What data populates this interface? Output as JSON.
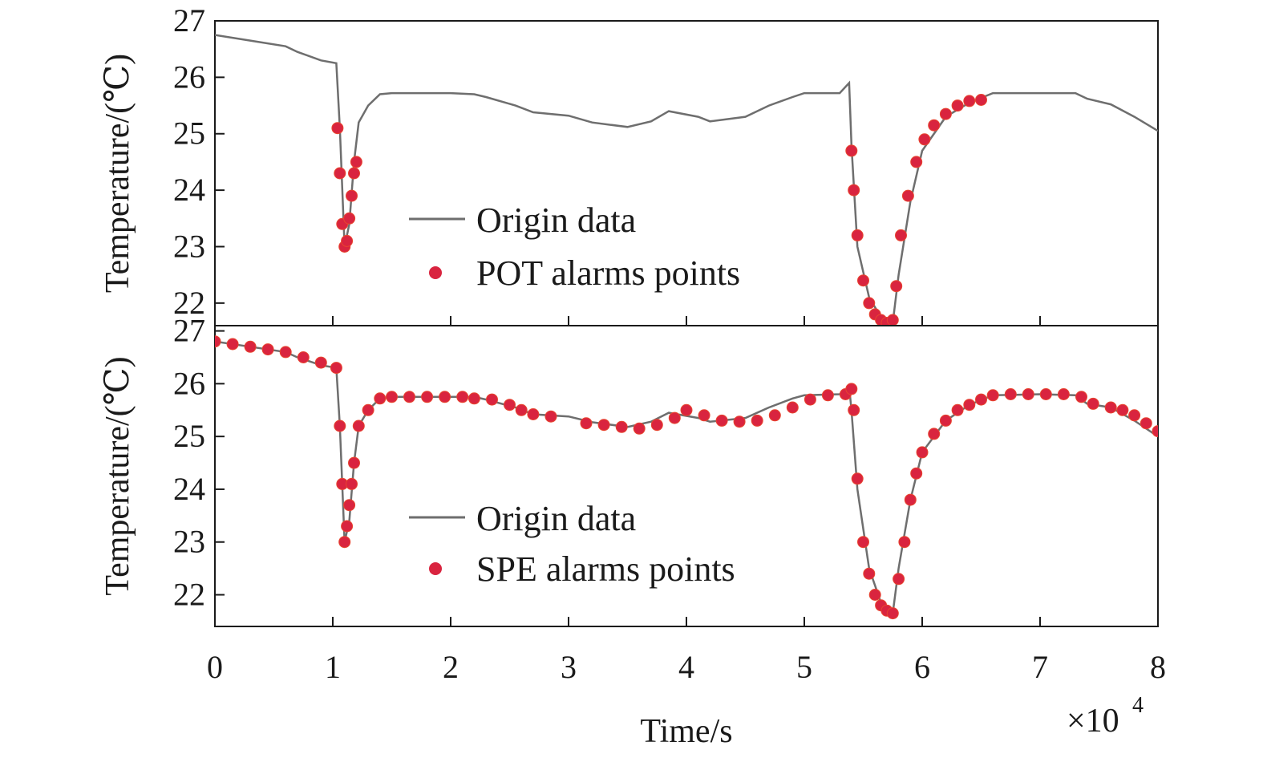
{
  "colors": {
    "origin_line": "#6e6e6e",
    "origin_line_alt": "#4a8ac8",
    "alarm_point": "#d9243f",
    "alarm_point_edge": "#e8452f",
    "axis": "#1a1a1a"
  },
  "xaxis": {
    "label": "Time/s",
    "multiplier_label": "×10",
    "multiplier_exponent": "4",
    "ticks": [
      "0",
      "1",
      "2",
      "3",
      "4",
      "5",
      "6",
      "7",
      "8"
    ]
  },
  "chart_data": [
    {
      "type": "line",
      "ylabel": "Temperature/(℃)",
      "xlim": [
        0,
        8
      ],
      "ylim": [
        21.6,
        27
      ],
      "yticks": [
        "22",
        "23",
        "24",
        "25",
        "26",
        "27"
      ],
      "x_multiplier": 10000,
      "legend": {
        "placement": "center",
        "entries": [
          {
            "label": "Origin data",
            "marker": "line"
          },
          {
            "label": "POT alarms points",
            "marker": "dot"
          }
        ]
      },
      "series": [
        {
          "name": "Origin data",
          "kind": "line",
          "x": [
            0,
            0.3,
            0.6,
            0.7,
            0.9,
            1.03,
            1.06,
            1.1,
            1.14,
            1.18,
            1.22,
            1.3,
            1.4,
            1.5,
            2.0,
            2.2,
            2.3,
            2.55,
            2.7,
            3.0,
            3.2,
            3.5,
            3.7,
            3.85,
            4.1,
            4.2,
            4.5,
            4.7,
            4.9,
            5.0,
            5.3,
            5.38,
            5.4,
            5.45,
            5.55,
            5.65,
            5.75,
            5.8,
            5.9,
            6.0,
            6.2,
            6.4,
            6.6,
            7.0,
            7.3,
            7.4,
            7.6,
            7.8,
            8.0
          ],
          "y": [
            26.75,
            26.65,
            26.55,
            26.45,
            26.3,
            26.25,
            25.1,
            23.0,
            23.4,
            24.5,
            25.2,
            25.5,
            25.7,
            25.72,
            25.72,
            25.7,
            25.65,
            25.5,
            25.38,
            25.32,
            25.2,
            25.12,
            25.22,
            25.4,
            25.3,
            25.22,
            25.3,
            25.5,
            25.65,
            25.72,
            25.72,
            25.9,
            24.8,
            23.0,
            22.1,
            21.75,
            21.65,
            22.5,
            23.8,
            24.7,
            25.3,
            25.55,
            25.72,
            25.72,
            25.72,
            25.62,
            25.52,
            25.3,
            25.05
          ]
        },
        {
          "name": "POT alarms points",
          "kind": "scatter",
          "x": [
            1.04,
            1.06,
            1.08,
            1.1,
            1.12,
            1.14,
            1.16,
            1.18,
            1.2,
            5.4,
            5.42,
            5.45,
            5.5,
            5.55,
            5.6,
            5.65,
            5.7,
            5.75,
            5.78,
            5.82,
            5.88,
            5.95,
            6.02,
            6.1,
            6.2,
            6.3,
            6.4,
            6.5
          ],
          "y": [
            25.1,
            24.3,
            23.4,
            23.0,
            23.1,
            23.5,
            23.9,
            24.3,
            24.5,
            24.7,
            24.0,
            23.2,
            22.4,
            22.0,
            21.8,
            21.7,
            21.65,
            21.7,
            22.3,
            23.2,
            23.9,
            24.5,
            24.9,
            25.15,
            25.35,
            25.5,
            25.58,
            25.6
          ]
        }
      ]
    },
    {
      "type": "line",
      "ylabel": "Temperature/(℃)",
      "xlim": [
        0,
        8
      ],
      "ylim": [
        21.4,
        27.1
      ],
      "yticks": [
        "22",
        "23",
        "24",
        "25",
        "26",
        "27"
      ],
      "x_multiplier": 10000,
      "legend": {
        "placement": "center",
        "entries": [
          {
            "label": "Origin data",
            "marker": "line"
          },
          {
            "label": "SPE alarms points",
            "marker": "dot"
          }
        ]
      },
      "series": [
        {
          "name": "Origin data",
          "kind": "line",
          "x": [
            0,
            0.3,
            0.6,
            0.7,
            0.9,
            1.03,
            1.06,
            1.1,
            1.14,
            1.18,
            1.22,
            1.3,
            1.4,
            1.5,
            2.0,
            2.2,
            2.3,
            2.55,
            2.7,
            3.0,
            3.2,
            3.5,
            3.7,
            3.85,
            4.1,
            4.2,
            4.5,
            4.7,
            4.9,
            5.0,
            5.3,
            5.38,
            5.4,
            5.45,
            5.55,
            5.65,
            5.75,
            5.8,
            5.9,
            6.0,
            6.2,
            6.4,
            6.6,
            7.0,
            7.3,
            7.4,
            7.6,
            7.8,
            8.0
          ],
          "y": [
            26.8,
            26.7,
            26.6,
            26.5,
            26.35,
            26.3,
            25.2,
            23.0,
            23.4,
            24.5,
            25.2,
            25.5,
            25.72,
            25.75,
            25.75,
            25.75,
            25.7,
            25.55,
            25.42,
            25.38,
            25.27,
            25.18,
            25.28,
            25.45,
            25.35,
            25.28,
            25.35,
            25.55,
            25.72,
            25.78,
            25.8,
            25.95,
            25.5,
            24.0,
            22.5,
            21.85,
            21.65,
            22.5,
            23.8,
            24.7,
            25.3,
            25.6,
            25.78,
            25.8,
            25.78,
            25.62,
            25.55,
            25.3,
            25.0
          ]
        },
        {
          "name": "SPE alarms points",
          "kind": "scatter",
          "x": [
            0,
            0.15,
            0.3,
            0.45,
            0.6,
            0.75,
            0.9,
            1.03,
            1.06,
            1.08,
            1.1,
            1.12,
            1.14,
            1.16,
            1.18,
            1.22,
            1.3,
            1.4,
            1.5,
            1.65,
            1.8,
            1.95,
            2.1,
            2.2,
            2.35,
            2.5,
            2.6,
            2.7,
            2.85,
            3.15,
            3.3,
            3.45,
            3.6,
            3.75,
            3.9,
            4.0,
            4.15,
            4.3,
            4.45,
            4.6,
            4.75,
            4.9,
            5.05,
            5.2,
            5.35,
            5.4,
            5.42,
            5.45,
            5.5,
            5.55,
            5.6,
            5.65,
            5.7,
            5.75,
            5.8,
            5.85,
            5.9,
            5.95,
            6.0,
            6.1,
            6.2,
            6.3,
            6.4,
            6.5,
            6.6,
            6.75,
            6.9,
            7.05,
            7.2,
            7.35,
            7.45,
            7.6,
            7.7,
            7.8,
            7.9,
            8.0
          ],
          "y": [
            26.8,
            26.75,
            26.7,
            26.65,
            26.6,
            26.5,
            26.4,
            26.3,
            25.2,
            24.1,
            23.0,
            23.3,
            23.7,
            24.1,
            24.5,
            25.2,
            25.5,
            25.72,
            25.75,
            25.75,
            25.75,
            25.75,
            25.75,
            25.72,
            25.7,
            25.6,
            25.5,
            25.42,
            25.38,
            25.25,
            25.22,
            25.18,
            25.15,
            25.22,
            25.35,
            25.5,
            25.4,
            25.3,
            25.28,
            25.3,
            25.4,
            25.55,
            25.7,
            25.78,
            25.8,
            25.9,
            25.5,
            24.2,
            23.0,
            22.4,
            22.0,
            21.8,
            21.7,
            21.65,
            22.3,
            23.0,
            23.8,
            24.3,
            24.7,
            25.05,
            25.3,
            25.5,
            25.6,
            25.7,
            25.78,
            25.8,
            25.8,
            25.8,
            25.8,
            25.75,
            25.62,
            25.55,
            25.5,
            25.4,
            25.25,
            25.1
          ]
        }
      ]
    }
  ]
}
